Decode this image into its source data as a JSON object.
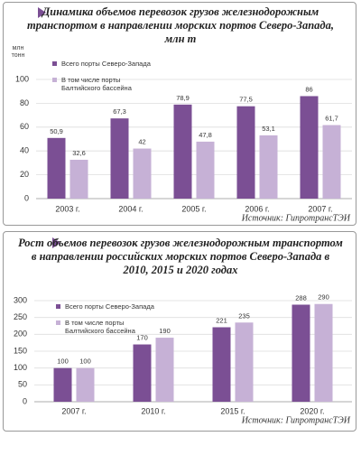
{
  "chart_data": [
    {
      "type": "bar",
      "title": "Динамика объемов перевозок грузов железнодорожным транспортом в направлении морских портов Северо-Запада, млн т",
      "y_label": "млн тонн",
      "categories": [
        "2003 г.",
        "2004 г.",
        "2005 г.",
        "2006 г.",
        "2007 г."
      ],
      "series": [
        {
          "name": "Всего порты Северо-Запада",
          "color": "#7b4f94",
          "values": [
            50.9,
            67.3,
            78.9,
            77.5,
            86
          ],
          "value_labels": [
            "50,9",
            "67,3",
            "78,9",
            "77,5",
            "86"
          ]
        },
        {
          "name": "В том числе порты Балтийского бассейна",
          "color": "#c6b1d6",
          "values": [
            32.6,
            42,
            47.8,
            53.1,
            61.7
          ],
          "value_labels": [
            "32,6",
            "42",
            "47,8",
            "53,1",
            "61,7"
          ]
        }
      ],
      "ylim": [
        0,
        100
      ],
      "yticks": [
        0,
        20,
        40,
        60,
        80,
        100
      ],
      "grid": true,
      "source": "Источник: ГипротрансТЭИ"
    },
    {
      "type": "bar",
      "title": "Рост объемов перевозок грузов железнодорожным транспортом в направлении российских морских портов Северо-Запада в 2010, 2015 и 2020 годах",
      "categories": [
        "2007 г.",
        "2010 г.",
        "2015 г.",
        "2020 г."
      ],
      "series": [
        {
          "name": "Всего порты Северо-Запада",
          "color": "#7b4f94",
          "values": [
            100,
            170,
            221,
            288
          ]
        },
        {
          "name": "В том числе порты Балтийского бассейна",
          "color": "#c6b1d6",
          "values": [
            100,
            190,
            235,
            290
          ]
        }
      ],
      "ylim": [
        0,
        300
      ],
      "yticks": [
        0,
        50,
        100,
        150,
        200,
        250,
        300
      ],
      "grid": true,
      "source": "Источник: ГипротрансТЭИ"
    }
  ]
}
